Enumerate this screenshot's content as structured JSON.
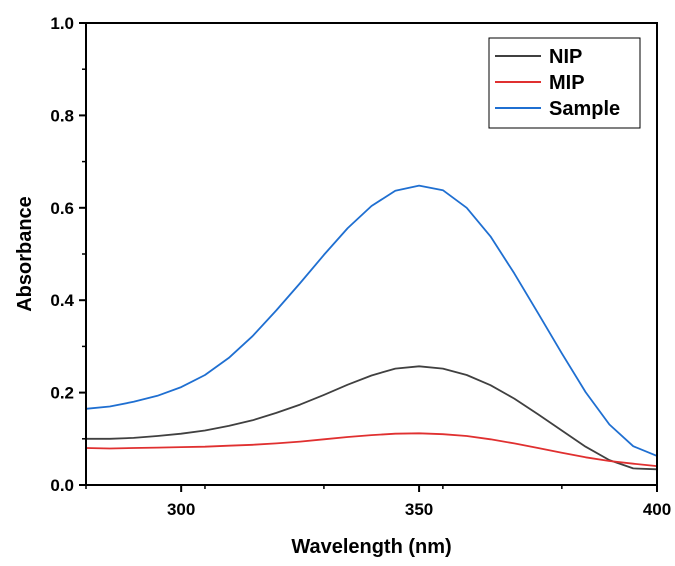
{
  "chart_data": {
    "type": "line",
    "xlabel": "Wavelength (nm)",
    "ylabel": "Absorbance",
    "xlim": [
      280,
      400
    ],
    "ylim": [
      0.0,
      1.0
    ],
    "xticks": [
      300,
      350,
      400
    ],
    "xtick_labels": [
      "300",
      "350",
      "400"
    ],
    "yticks": [
      0.0,
      0.2,
      0.4,
      0.6,
      0.8,
      1.0
    ],
    "ytick_labels": [
      "0.0",
      "0.2",
      "0.4",
      "0.6",
      "0.8",
      "1.0"
    ],
    "grid": false,
    "legend_position": "top-right",
    "x": [
      280,
      285,
      290,
      295,
      300,
      305,
      310,
      315,
      320,
      325,
      330,
      335,
      340,
      345,
      350,
      355,
      360,
      365,
      370,
      375,
      380,
      385,
      390,
      395,
      400
    ],
    "series": [
      {
        "name": "NIP",
        "color": "#404040",
        "values": [
          0.1,
          0.1,
          0.102,
          0.106,
          0.111,
          0.118,
          0.128,
          0.14,
          0.156,
          0.174,
          0.195,
          0.217,
          0.237,
          0.252,
          0.257,
          0.252,
          0.238,
          0.216,
          0.187,
          0.153,
          0.118,
          0.083,
          0.054,
          0.036,
          0.034
        ]
      },
      {
        "name": "MIP",
        "color": "#e03030",
        "values": [
          0.08,
          0.079,
          0.08,
          0.081,
          0.082,
          0.083,
          0.085,
          0.087,
          0.09,
          0.094,
          0.099,
          0.104,
          0.108,
          0.111,
          0.112,
          0.11,
          0.106,
          0.099,
          0.09,
          0.08,
          0.07,
          0.06,
          0.052,
          0.046,
          0.041
        ]
      },
      {
        "name": "Sample",
        "color": "#1f6fd1",
        "values": [
          0.165,
          0.17,
          0.18,
          0.193,
          0.212,
          0.238,
          0.275,
          0.322,
          0.378,
          0.437,
          0.498,
          0.556,
          0.604,
          0.637,
          0.648,
          0.638,
          0.6,
          0.538,
          0.458,
          0.372,
          0.285,
          0.201,
          0.131,
          0.084,
          0.063
        ]
      }
    ]
  }
}
